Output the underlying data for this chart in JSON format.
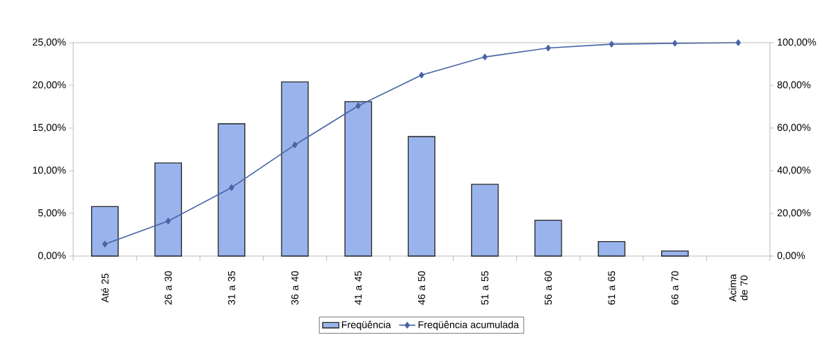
{
  "chart_data": {
    "type": "bar",
    "categories": [
      "Até 25",
      "26 a 30",
      "31 a 35",
      "36 a 40",
      "41 a 45",
      "46 a 50",
      "51 a 55",
      "56 a 60",
      "61 a 65",
      "66 a 70",
      "Acima de 70"
    ],
    "series": [
      {
        "name": "Freqüência",
        "color": "#99b3ec",
        "values": [
          5.8,
          10.9,
          15.5,
          20.4,
          18.1,
          14.0,
          8.4,
          4.2,
          1.7,
          0.6,
          0
        ]
      },
      {
        "name": "Freqüência acumulada",
        "type": "line",
        "axis": "y2",
        "color": "#4a64a8",
        "values": [
          5.6,
          16.4,
          32.1,
          52.1,
          70.4,
          84.8,
          93.3,
          97.5,
          99.3,
          99.7,
          100
        ]
      }
    ],
    "ylim": [
      0,
      25
    ],
    "yticks": [
      {
        "value": 0,
        "label": "0,00%"
      },
      {
        "value": 5,
        "label": "5,00%"
      },
      {
        "value": 10,
        "label": "10,00%"
      },
      {
        "value": 15,
        "label": "15,00%"
      },
      {
        "value": 20,
        "label": "20,00%"
      },
      {
        "value": 25,
        "label": "25,00%"
      }
    ],
    "y2lim": [
      0,
      100
    ],
    "y2ticks": [
      {
        "value": 0,
        "label": "0,00%"
      },
      {
        "value": 20,
        "label": "20,00%"
      },
      {
        "value": 40,
        "label": "40,00%"
      },
      {
        "value": 60,
        "label": "60,00%"
      },
      {
        "value": 80,
        "label": "80,00%"
      },
      {
        "value": 100,
        "label": "100,00%"
      }
    ],
    "marker": "diamond",
    "legend": "bottom",
    "grid": false
  }
}
